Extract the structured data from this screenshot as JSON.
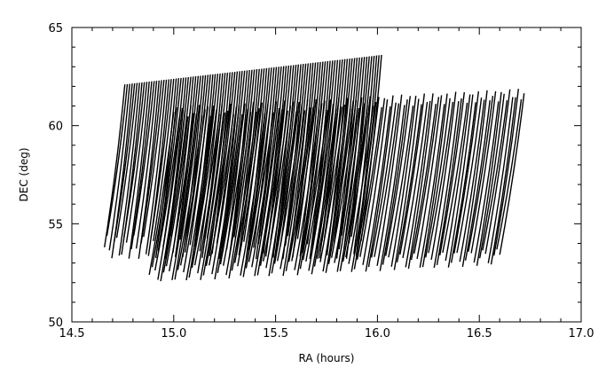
{
  "chart_data": {
    "type": "line",
    "title": "",
    "xlabel": "RA (hours)",
    "ylabel": "DEC (deg)",
    "xlim": [
      14.5,
      17.0
    ],
    "ylim": [
      50,
      65
    ],
    "x_ticks": [
      14.5,
      15.0,
      15.5,
      16.0,
      16.5,
      17.0
    ],
    "x_tick_labels": [
      "14.5",
      "15.0",
      "15.5",
      "16.0",
      "16.5",
      "17.0"
    ],
    "y_ticks": [
      50,
      55,
      60,
      65
    ],
    "y_tick_labels": [
      "50",
      "55",
      "60",
      "65"
    ],
    "grid": false,
    "legend": "none",
    "line_color": "#000000",
    "footprints": [
      {
        "name": "",
        "ra_start": 14.76,
        "ra_end": 16.02,
        "dec_bottom": 53.8,
        "dec_top": 62.1,
        "top_edge_dec_end": 63.6,
        "stripe_spacing_ra": 0.012,
        "stripe_tilt_ra": -0.1,
        "notes": "dense set of scan stripes, upper-left block"
      },
      {
        "name": "",
        "ra_start": 15.0,
        "ra_end": 16.72,
        "dec_bottom": 52.4,
        "dec_top": 61.6,
        "bottom_edge_dec_end": 53.3,
        "stripe_spacing_ra": 0.014,
        "stripe_tilt_ra": -0.12,
        "notes": "dense set of scan stripes, lower-right block"
      }
    ]
  }
}
